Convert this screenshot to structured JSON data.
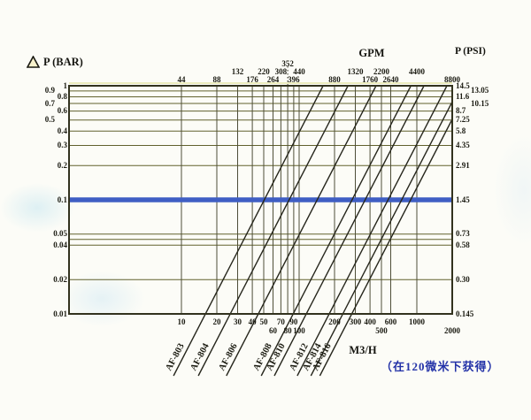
{
  "header": {
    "y_left_title": "P (BAR)",
    "footnote": "（在120微米下获得）"
  },
  "chart_data": {
    "type": "line",
    "scale": "log-log",
    "title": "Pressure drop vs flow rate for AF-8xx filters",
    "x_axis_top": {
      "label": "GPM",
      "ticks": [
        {
          "text": "44",
          "m3h": 10,
          "row": 2
        },
        {
          "text": "88",
          "m3h": 20,
          "row": 2
        },
        {
          "text": "132",
          "m3h": 30,
          "row": 1
        },
        {
          "text": "176",
          "m3h": 40,
          "row": 2
        },
        {
          "text": "220",
          "m3h": 50,
          "row": 1
        },
        {
          "text": "264",
          "m3h": 60,
          "row": 2
        },
        {
          "text": "308",
          "m3h": 70,
          "row": 1
        },
        {
          "text": "352",
          "m3h": 80,
          "row": 0,
          "dotted_leader": true
        },
        {
          "text": "396",
          "m3h": 90,
          "row": 2
        },
        {
          "text": "440",
          "m3h": 100,
          "row": 1
        },
        {
          "text": "880",
          "m3h": 200,
          "row": 2
        },
        {
          "text": "1320",
          "m3h": 300,
          "row": 1
        },
        {
          "text": "1760",
          "m3h": 400,
          "row": 2
        },
        {
          "text": "2200",
          "m3h": 500,
          "row": 1
        },
        {
          "text": "2640",
          "m3h": 600,
          "row": 2
        },
        {
          "text": "4400",
          "m3h": 1000,
          "row": 1
        },
        {
          "text": "8800",
          "m3h": 2000,
          "row": 2
        }
      ]
    },
    "x_axis_bottom": {
      "label": "M3/H",
      "range_m3h": [
        1.15,
        2000
      ],
      "gridlines": [
        10,
        20,
        30,
        40,
        50,
        60,
        70,
        80,
        90,
        100,
        200,
        300,
        400,
        500,
        600,
        1000
      ],
      "ticks": [
        {
          "text": "10",
          "m3h": 10,
          "row": 0
        },
        {
          "text": "20",
          "m3h": 20,
          "row": 0
        },
        {
          "text": "30",
          "m3h": 30,
          "row": 0
        },
        {
          "text": "40",
          "m3h": 40,
          "row": 0
        },
        {
          "text": "50",
          "m3h": 50,
          "row": 0
        },
        {
          "text": "60",
          "m3h": 60,
          "row": 1
        },
        {
          "text": "70",
          "m3h": 70,
          "row": 0
        },
        {
          "text": "80",
          "m3h": 80,
          "row": 1
        },
        {
          "text": "90",
          "m3h": 90,
          "row": 0
        },
        {
          "text": "100",
          "m3h": 100,
          "row": 1
        },
        {
          "text": "200",
          "m3h": 200,
          "row": 0
        },
        {
          "text": "300",
          "m3h": 300,
          "row": 0
        },
        {
          "text": "400",
          "m3h": 400,
          "row": 0
        },
        {
          "text": "500",
          "m3h": 500,
          "row": 1
        },
        {
          "text": "600",
          "m3h": 600,
          "row": 0
        },
        {
          "text": "1000",
          "m3h": 1000,
          "row": 0
        },
        {
          "text": "2000",
          "m3h": 2000,
          "row": 1
        }
      ]
    },
    "y_axis_left": {
      "label": "ΔP (BAR)",
      "range_bar": [
        0.01,
        1
      ],
      "gridlines_bar": [
        0.9,
        0.8,
        0.7,
        0.6,
        0.5,
        0.4,
        0.3,
        0.2,
        0.05,
        0.045,
        0.04,
        0.02
      ],
      "ticks": [
        {
          "text": "1",
          "bar": 1,
          "col": 0
        },
        {
          "text": "0.9",
          "bar": 0.9,
          "col": 1
        },
        {
          "text": "0.8",
          "bar": 0.8,
          "col": 0
        },
        {
          "text": "0.7",
          "bar": 0.7,
          "col": 1
        },
        {
          "text": "0.6",
          "bar": 0.6,
          "col": 0
        },
        {
          "text": "0.5",
          "bar": 0.5,
          "col": 1
        },
        {
          "text": "0.4",
          "bar": 0.4,
          "col": 0
        },
        {
          "text": "0.3",
          "bar": 0.3,
          "col": 0
        },
        {
          "text": "0.2",
          "bar": 0.2,
          "col": 0
        },
        {
          "text": "0.1",
          "bar": 0.1,
          "col": 0
        },
        {
          "text": "0.05",
          "bar": 0.05,
          "col": 0
        },
        {
          "text": "0.04",
          "bar": 0.04,
          "col": 0
        },
        {
          "text": "0.02",
          "bar": 0.02,
          "col": 0
        },
        {
          "text": "0.01",
          "bar": 0.01,
          "col": 0
        }
      ]
    },
    "y_axis_right": {
      "label": "P (PSI)",
      "ticks": [
        {
          "text": "14.5",
          "bar": 1,
          "col": 0
        },
        {
          "text": "13.05",
          "bar": 0.9,
          "col": 1
        },
        {
          "text": "11.6",
          "bar": 0.8,
          "col": 0
        },
        {
          "text": "10.15",
          "bar": 0.7,
          "col": 1
        },
        {
          "text": "8.7",
          "bar": 0.6,
          "col": 0
        },
        {
          "text": "7.25",
          "bar": 0.5,
          "col": 0
        },
        {
          "text": "5.8",
          "bar": 0.4,
          "col": 0
        },
        {
          "text": "4.35",
          "bar": 0.3,
          "col": 0
        },
        {
          "text": "2.91",
          "bar": 0.2,
          "col": 0
        },
        {
          "text": "1.45",
          "bar": 0.1,
          "col": 0
        },
        {
          "text": "0.73",
          "bar": 0.05,
          "col": 0
        },
        {
          "text": "0.58",
          "bar": 0.04,
          "col": 0
        },
        {
          "text": "0.30",
          "bar": 0.02,
          "col": 0
        },
        {
          "text": "0.145",
          "bar": 0.01,
          "col": 0
        }
      ]
    },
    "reference_line": {
      "bar": 0.1,
      "color": "#3f5ec4",
      "width": 5.5
    },
    "series": [
      {
        "name": "AF-803",
        "flow_m3h_at_0p01bar": 16,
        "flow_m3h_at_1bar": 160
      },
      {
        "name": "AF-804",
        "flow_m3h_at_0p01bar": 26,
        "flow_m3h_at_1bar": 260
      },
      {
        "name": "AF-806",
        "flow_m3h_at_0p01bar": 45,
        "flow_m3h_at_1bar": 450
      },
      {
        "name": "AF-808",
        "flow_m3h_at_0p01bar": 89,
        "flow_m3h_at_1bar": 890
      },
      {
        "name": "AF-810",
        "flow_m3h_at_0p01bar": 115,
        "flow_m3h_at_1bar": 1150
      },
      {
        "name": "AF-812",
        "flow_m3h_at_0p01bar": 180,
        "flow_m3h_at_1bar": 1800
      },
      {
        "name": "AF-814",
        "flow_m3h_at_0p01bar": 235,
        "flow_m3h_at_1bar": 2350
      },
      {
        "name": "AF-816",
        "flow_m3h_at_0p01bar": 280,
        "flow_m3h_at_1bar": 2800
      }
    ],
    "colors": {
      "gridline": "#61612e",
      "vgridline": "#4e4e38",
      "border": "#32321e",
      "diagonal": "#26261c",
      "reference": "#3f5ec4",
      "footnote": "#2433a8"
    }
  }
}
